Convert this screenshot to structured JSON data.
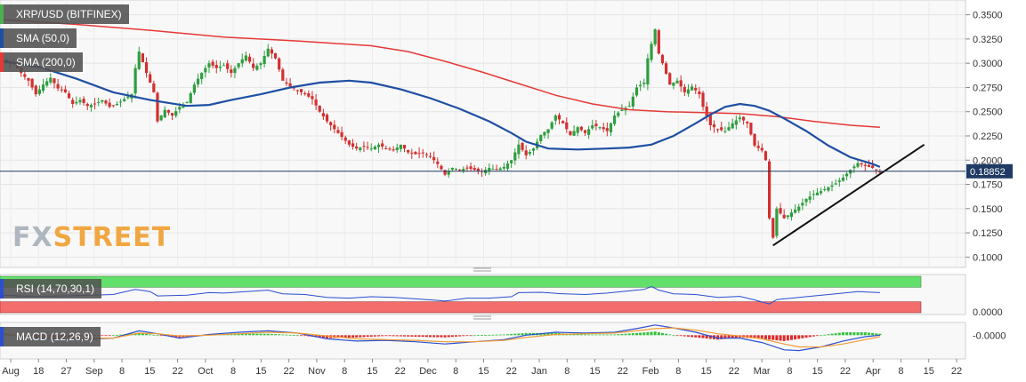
{
  "header": {
    "pair_label": "XRP/USD (BITFINEX)",
    "sma50_label": "SMA (50,0)",
    "sma200_label": "SMA (200,0)",
    "rsi_label": "RSI (14,70,30,1)",
    "macd_label": "MACD (12,26,9)"
  },
  "brand": {
    "fx": "FX",
    "street": "STREET"
  },
  "colors": {
    "up": "#2e9e3f",
    "down": "#d32f2f",
    "sma50": "#1e4fa3",
    "sma200": "#e53935",
    "trendline": "#111111",
    "rsi_line": "#2a4fd0",
    "overbought": "#63e06b",
    "oversold": "#f36d6d",
    "macd_line": "#2a4fd0",
    "signal_line": "#f39c33",
    "price_badge": "#1f3a64"
  },
  "chart_data": [
    {
      "type": "candlestick",
      "title": "XRP/USD (BITFINEX)",
      "current_price": "0.18852",
      "y_ticks": [
        "0.3500",
        "0.3250",
        "0.3000",
        "0.2750",
        "0.2500",
        "0.2250",
        "0.2000",
        "0.1750",
        "0.1500",
        "0.1250",
        "0.1000"
      ],
      "ylim": [
        0.093,
        0.357
      ],
      "x_tick_labels": [
        "Aug",
        "18",
        "27",
        "Sep",
        "8",
        "15",
        "22",
        "Oct",
        "8",
        "15",
        "22",
        "Nov",
        "8",
        "15",
        "22",
        "Dec",
        "8",
        "15",
        "22",
        "Jan",
        "8",
        "15",
        "22",
        "Feb",
        "8",
        "15",
        "22",
        "Mar",
        "8",
        "15",
        "22",
        "Apr",
        "8",
        "15",
        "22"
      ],
      "price_path": [
        [
          0,
          0.305
        ],
        [
          1,
          0.302
        ],
        [
          3,
          0.3
        ],
        [
          5,
          0.29
        ],
        [
          7,
          0.282
        ],
        [
          9,
          0.268
        ],
        [
          11,
          0.278
        ],
        [
          13,
          0.285
        ],
        [
          15,
          0.274
        ],
        [
          17,
          0.27
        ],
        [
          19,
          0.258
        ],
        [
          21,
          0.262
        ],
        [
          23,
          0.256
        ],
        [
          25,
          0.258
        ],
        [
          27,
          0.262
        ],
        [
          29,
          0.255
        ],
        [
          31,
          0.258
        ],
        [
          33,
          0.263
        ],
        [
          35,
          0.268
        ],
        [
          36,
          0.295
        ],
        [
          37,
          0.312
        ],
        [
          39,
          0.29
        ],
        [
          41,
          0.27
        ],
        [
          42,
          0.24
        ],
        [
          44,
          0.252
        ],
        [
          46,
          0.246
        ],
        [
          48,
          0.255
        ],
        [
          50,
          0.26
        ],
        [
          52,
          0.278
        ],
        [
          54,
          0.29
        ],
        [
          56,
          0.3
        ],
        [
          58,
          0.295
        ],
        [
          60,
          0.298
        ],
        [
          62,
          0.29
        ],
        [
          64,
          0.3
        ],
        [
          66,
          0.308
        ],
        [
          68,
          0.295
        ],
        [
          70,
          0.3
        ],
        [
          72,
          0.315
        ],
        [
          74,
          0.305
        ],
        [
          76,
          0.282
        ],
        [
          78,
          0.276
        ],
        [
          80,
          0.272
        ],
        [
          82,
          0.268
        ],
        [
          84,
          0.263
        ],
        [
          86,
          0.25
        ],
        [
          88,
          0.24
        ],
        [
          90,
          0.232
        ],
        [
          92,
          0.224
        ],
        [
          94,
          0.216
        ],
        [
          96,
          0.212
        ],
        [
          98,
          0.214
        ],
        [
          100,
          0.212
        ],
        [
          102,
          0.216
        ],
        [
          104,
          0.212
        ],
        [
          106,
          0.21
        ],
        [
          108,
          0.216
        ],
        [
          110,
          0.208
        ],
        [
          112,
          0.206
        ],
        [
          114,
          0.208
        ],
        [
          116,
          0.204
        ],
        [
          118,
          0.196
        ],
        [
          120,
          0.185
        ],
        [
          122,
          0.192
        ],
        [
          124,
          0.19
        ],
        [
          126,
          0.192
        ],
        [
          128,
          0.19
        ],
        [
          130,
          0.188
        ],
        [
          132,
          0.192
        ],
        [
          134,
          0.19
        ],
        [
          136,
          0.193
        ],
        [
          138,
          0.2
        ],
        [
          140,
          0.216
        ],
        [
          142,
          0.205
        ],
        [
          144,
          0.212
        ],
        [
          146,
          0.226
        ],
        [
          148,
          0.232
        ],
        [
          150,
          0.246
        ],
        [
          152,
          0.238
        ],
        [
          154,
          0.226
        ],
        [
          156,
          0.234
        ],
        [
          158,
          0.228
        ],
        [
          160,
          0.236
        ],
        [
          162,
          0.234
        ],
        [
          164,
          0.23
        ],
        [
          166,
          0.246
        ],
        [
          168,
          0.252
        ],
        [
          170,
          0.256
        ],
        [
          172,
          0.275
        ],
        [
          174,
          0.28
        ],
        [
          175,
          0.305
        ],
        [
          176,
          0.32
        ],
        [
          177,
          0.335
        ],
        [
          178,
          0.31
        ],
        [
          179,
          0.3
        ],
        [
          181,
          0.278
        ],
        [
          183,
          0.282
        ],
        [
          185,
          0.27
        ],
        [
          187,
          0.276
        ],
        [
          189,
          0.268
        ],
        [
          190,
          0.255
        ],
        [
          192,
          0.236
        ],
        [
          194,
          0.232
        ],
        [
          196,
          0.23
        ],
        [
          198,
          0.238
        ],
        [
          200,
          0.244
        ],
        [
          202,
          0.238
        ],
        [
          204,
          0.215
        ],
        [
          206,
          0.21
        ],
        [
          207,
          0.2
        ],
        [
          208,
          0.14
        ],
        [
          209,
          0.12
        ],
        [
          210,
          0.15
        ],
        [
          212,
          0.14
        ],
        [
          214,
          0.146
        ],
        [
          216,
          0.152
        ],
        [
          218,
          0.16
        ],
        [
          220,
          0.165
        ],
        [
          222,
          0.168
        ],
        [
          224,
          0.172
        ],
        [
          226,
          0.176
        ],
        [
          228,
          0.182
        ],
        [
          230,
          0.19
        ],
        [
          232,
          0.197
        ],
        [
          234,
          0.194
        ],
        [
          236,
          0.192
        ],
        [
          238,
          0.188
        ]
      ],
      "sma50": [
        [
          0,
          0.302
        ],
        [
          10,
          0.296
        ],
        [
          20,
          0.284
        ],
        [
          30,
          0.27
        ],
        [
          40,
          0.262
        ],
        [
          50,
          0.256
        ],
        [
          56,
          0.257
        ],
        [
          62,
          0.262
        ],
        [
          70,
          0.268
        ],
        [
          78,
          0.275
        ],
        [
          86,
          0.28
        ],
        [
          94,
          0.282
        ],
        [
          100,
          0.28
        ],
        [
          108,
          0.273
        ],
        [
          116,
          0.264
        ],
        [
          124,
          0.253
        ],
        [
          132,
          0.24
        ],
        [
          138,
          0.228
        ],
        [
          142,
          0.219
        ],
        [
          148,
          0.212
        ],
        [
          156,
          0.211
        ],
        [
          164,
          0.212
        ],
        [
          170,
          0.213
        ],
        [
          176,
          0.216
        ],
        [
          182,
          0.225
        ],
        [
          188,
          0.238
        ],
        [
          192,
          0.247
        ],
        [
          196,
          0.255
        ],
        [
          200,
          0.258
        ],
        [
          204,
          0.256
        ],
        [
          208,
          0.251
        ],
        [
          212,
          0.243
        ],
        [
          218,
          0.23
        ],
        [
          224,
          0.215
        ],
        [
          230,
          0.203
        ],
        [
          236,
          0.196
        ],
        [
          238,
          0.193
        ]
      ],
      "sma200": [
        [
          0,
          0.345
        ],
        [
          20,
          0.34
        ],
        [
          40,
          0.334
        ],
        [
          60,
          0.327
        ],
        [
          80,
          0.323
        ],
        [
          100,
          0.318
        ],
        [
          110,
          0.312
        ],
        [
          120,
          0.302
        ],
        [
          130,
          0.291
        ],
        [
          140,
          0.279
        ],
        [
          150,
          0.267
        ],
        [
          160,
          0.258
        ],
        [
          170,
          0.252
        ],
        [
          180,
          0.25
        ],
        [
          190,
          0.249
        ],
        [
          200,
          0.248
        ],
        [
          210,
          0.245
        ],
        [
          220,
          0.24
        ],
        [
          230,
          0.236
        ],
        [
          238,
          0.234
        ]
      ],
      "trendline": [
        [
          209,
          0.112
        ],
        [
          250,
          0.216
        ]
      ],
      "ref_line": 0.18852
    },
    {
      "type": "line",
      "title": "RSI (14,70,30,1)",
      "ylim": [
        0,
        100
      ],
      "levels": [
        70,
        30
      ],
      "values": [
        [
          0,
          48
        ],
        [
          5,
          46
        ],
        [
          10,
          45
        ],
        [
          20,
          47
        ],
        [
          30,
          50
        ],
        [
          36,
          64
        ],
        [
          40,
          58
        ],
        [
          42,
          46
        ],
        [
          50,
          48
        ],
        [
          56,
          55
        ],
        [
          60,
          54
        ],
        [
          66,
          58
        ],
        [
          72,
          62
        ],
        [
          76,
          52
        ],
        [
          82,
          50
        ],
        [
          88,
          42
        ],
        [
          94,
          40
        ],
        [
          100,
          44
        ],
        [
          106,
          42
        ],
        [
          112,
          38
        ],
        [
          118,
          34
        ],
        [
          120,
          32
        ],
        [
          126,
          40
        ],
        [
          132,
          40
        ],
        [
          138,
          44
        ],
        [
          140,
          55
        ],
        [
          146,
          56
        ],
        [
          152,
          52
        ],
        [
          158,
          50
        ],
        [
          164,
          54
        ],
        [
          170,
          60
        ],
        [
          174,
          64
        ],
        [
          176,
          72
        ],
        [
          178,
          62
        ],
        [
          182,
          52
        ],
        [
          188,
          50
        ],
        [
          194,
          42
        ],
        [
          200,
          45
        ],
        [
          204,
          35
        ],
        [
          208,
          24
        ],
        [
          210,
          36
        ],
        [
          214,
          40
        ],
        [
          220,
          46
        ],
        [
          226,
          52
        ],
        [
          232,
          58
        ],
        [
          236,
          56
        ],
        [
          238,
          55
        ]
      ]
    },
    {
      "type": "bar",
      "title": "MACD (12,26,9)",
      "y_tick": "-0.0000",
      "ylim": [
        -0.03,
        0.015
      ],
      "macd": [
        [
          0,
          0.002
        ],
        [
          10,
          -0.004
        ],
        [
          20,
          -0.006
        ],
        [
          30,
          -0.004
        ],
        [
          37,
          0.006
        ],
        [
          42,
          0.002
        ],
        [
          48,
          -0.004
        ],
        [
          56,
          0.001
        ],
        [
          64,
          0.004
        ],
        [
          72,
          0.006
        ],
        [
          80,
          0.003
        ],
        [
          88,
          -0.005
        ],
        [
          96,
          -0.008
        ],
        [
          104,
          -0.007
        ],
        [
          112,
          -0.009
        ],
        [
          120,
          -0.012
        ],
        [
          128,
          -0.009
        ],
        [
          136,
          -0.006
        ],
        [
          142,
          0.0
        ],
        [
          150,
          0.004
        ],
        [
          158,
          0.003
        ],
        [
          166,
          0.004
        ],
        [
          172,
          0.009
        ],
        [
          177,
          0.014
        ],
        [
          182,
          0.01
        ],
        [
          188,
          0.004
        ],
        [
          194,
          -0.004
        ],
        [
          200,
          -0.004
        ],
        [
          206,
          -0.01
        ],
        [
          212,
          -0.02
        ],
        [
          216,
          -0.021
        ],
        [
          222,
          -0.016
        ],
        [
          228,
          -0.008
        ],
        [
          234,
          -0.002
        ],
        [
          238,
          0.0
        ]
      ],
      "signal": [
        [
          0,
          0.001
        ],
        [
          10,
          -0.002
        ],
        [
          20,
          -0.004
        ],
        [
          30,
          -0.004
        ],
        [
          37,
          0.003
        ],
        [
          42,
          0.002
        ],
        [
          48,
          -0.001
        ],
        [
          56,
          0.0
        ],
        [
          64,
          0.002
        ],
        [
          72,
          0.004
        ],
        [
          80,
          0.003
        ],
        [
          88,
          -0.001
        ],
        [
          96,
          -0.005
        ],
        [
          104,
          -0.006
        ],
        [
          112,
          -0.007
        ],
        [
          120,
          -0.009
        ],
        [
          128,
          -0.009
        ],
        [
          136,
          -0.007
        ],
        [
          142,
          -0.003
        ],
        [
          150,
          0.001
        ],
        [
          158,
          0.002
        ],
        [
          166,
          0.003
        ],
        [
          172,
          0.006
        ],
        [
          177,
          0.009
        ],
        [
          182,
          0.01
        ],
        [
          188,
          0.007
        ],
        [
          194,
          0.002
        ],
        [
          200,
          -0.001
        ],
        [
          206,
          -0.005
        ],
        [
          212,
          -0.012
        ],
        [
          216,
          -0.016
        ],
        [
          222,
          -0.016
        ],
        [
          228,
          -0.012
        ],
        [
          234,
          -0.006
        ],
        [
          238,
          -0.002
        ]
      ]
    }
  ]
}
